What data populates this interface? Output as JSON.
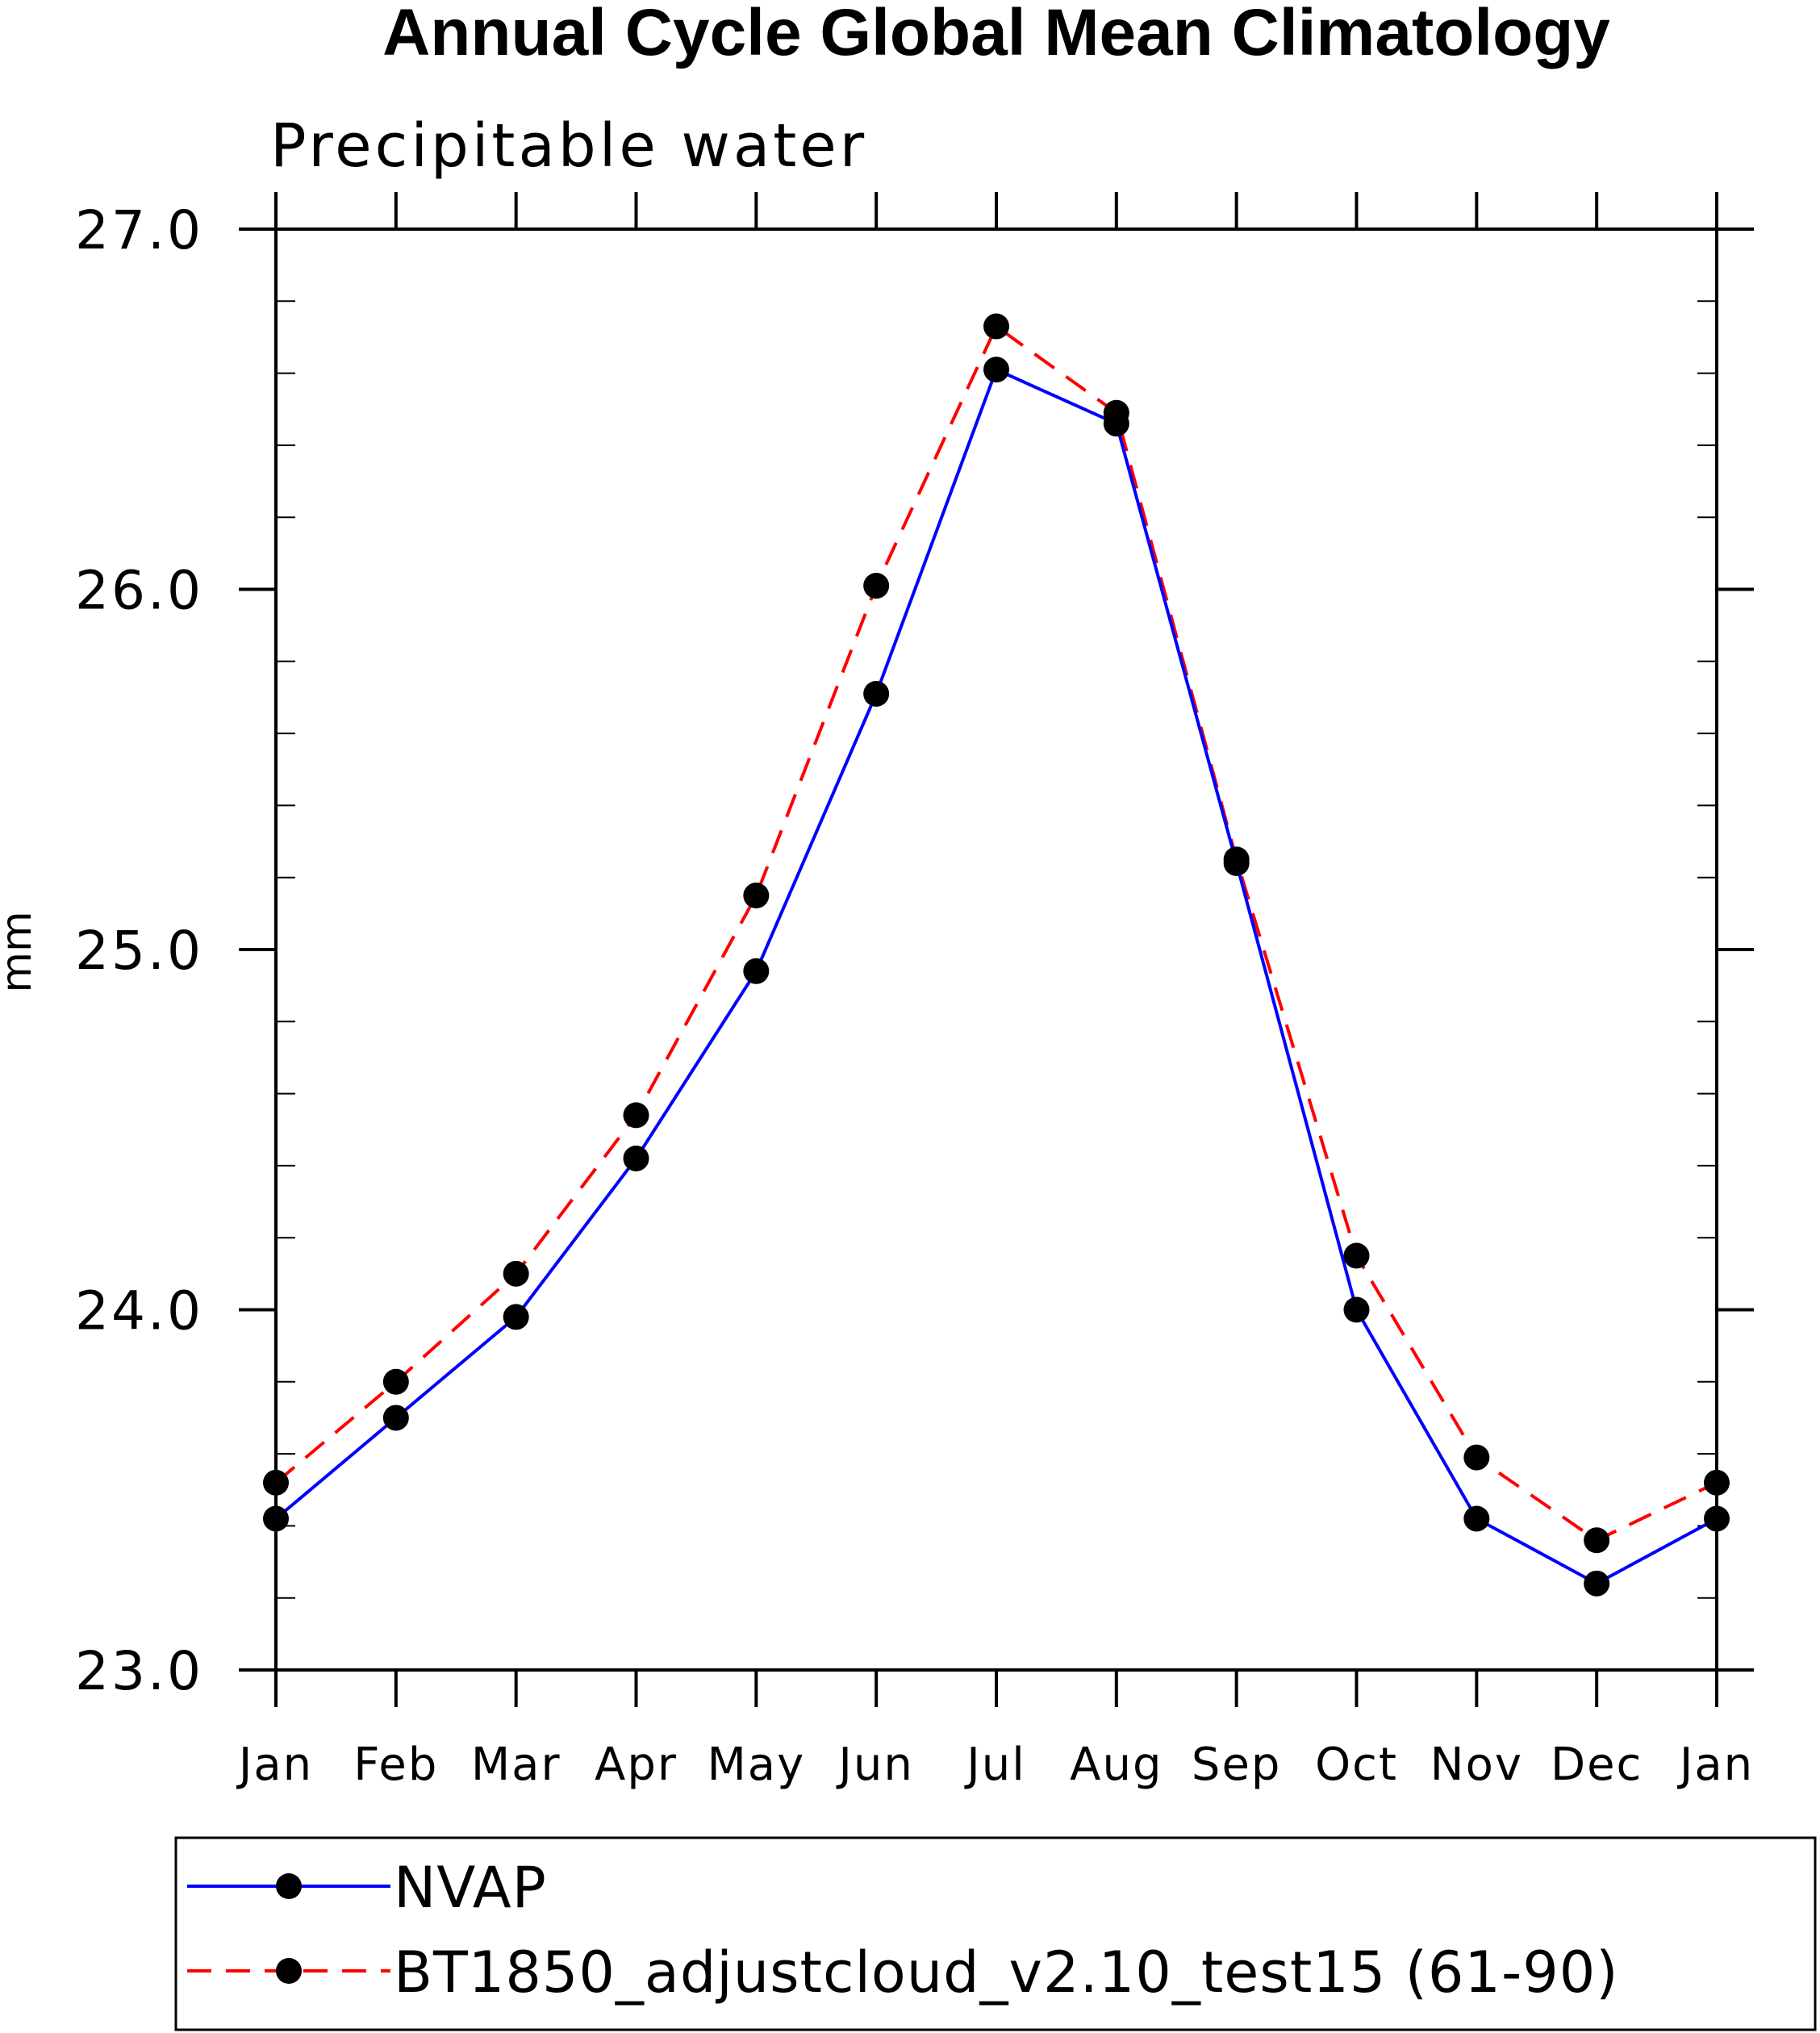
{
  "chart_data": {
    "type": "line",
    "title": "Annual Cycle Global Mean Climatology",
    "subtitle": "Precipitable water",
    "xlabel": "",
    "ylabel": "mm",
    "categories": [
      "Jan",
      "Feb",
      "Mar",
      "Apr",
      "May",
      "Jun",
      "Jul",
      "Aug",
      "Sep",
      "Oct",
      "Nov",
      "Dec",
      "Jan"
    ],
    "ylim": [
      23.0,
      27.0
    ],
    "yticks": [
      "23.0",
      "24.0",
      "25.0",
      "26.0",
      "27.0"
    ],
    "series": [
      {
        "name": "NVAP",
        "color": "#0000ff",
        "dash": "solid",
        "marker": "filled-circle",
        "values": [
          23.42,
          23.7,
          23.98,
          24.42,
          24.94,
          25.71,
          26.61,
          26.46,
          25.24,
          24.0,
          23.42,
          23.24,
          23.42
        ]
      },
      {
        "name": "BT1850_adjustcloud_v2.10_test15 (61-90)",
        "color": "#ff0000",
        "dash": "dashed",
        "marker": "filled-circle",
        "values": [
          23.52,
          23.8,
          24.1,
          24.54,
          25.15,
          26.01,
          26.73,
          26.49,
          25.25,
          24.15,
          23.59,
          23.36,
          23.52
        ]
      }
    ],
    "grid": false,
    "legend_position": "bottom"
  }
}
